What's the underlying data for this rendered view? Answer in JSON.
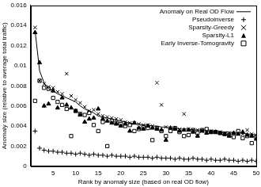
{
  "chart_data": {
    "type": "scatter",
    "x_label": "Rank by anomaly size (based on real OD flow)",
    "y_label": "Anomaly size (relative to average total traffic)",
    "x": [
      1,
      2,
      3,
      4,
      5,
      6,
      7,
      8,
      9,
      10,
      11,
      12,
      13,
      14,
      15,
      16,
      17,
      18,
      19,
      20,
      21,
      22,
      23,
      24,
      25,
      26,
      27,
      28,
      29,
      30,
      31,
      32,
      33,
      34,
      35,
      36,
      37,
      38,
      39,
      40,
      41,
      42,
      43,
      44,
      45,
      46,
      47,
      48,
      49,
      50
    ],
    "series": [
      {
        "name": "Anomaly on Real OD Flow",
        "type": "line",
        "line_style": "solid",
        "color": "#000000",
        "values": [
          0.0135,
          0.0095,
          0.0083,
          0.0077,
          0.0075,
          0.0072,
          0.007,
          0.0068,
          0.0066,
          0.0064,
          0.006,
          0.0057,
          0.0055,
          0.0053,
          0.005,
          0.0049,
          0.0048,
          0.0047,
          0.0046,
          0.0045,
          0.0044,
          0.0043,
          0.0042,
          0.0042,
          0.0041,
          0.0041,
          0.004,
          0.004,
          0.0039,
          0.0039,
          0.0038,
          0.0038,
          0.0037,
          0.0037,
          0.0037,
          0.0036,
          0.0036,
          0.0036,
          0.0035,
          0.0035,
          0.0035,
          0.0034,
          0.0034,
          0.0034,
          0.0033,
          0.0033,
          0.0033,
          0.0032,
          0.0032,
          0.0031
        ]
      },
      {
        "name": "Pseudoinverse",
        "marker": "plus",
        "color": "#000000",
        "values": [
          0.0035,
          0.0018,
          0.0016,
          0.0015,
          0.0015,
          0.0014,
          0.0014,
          0.0013,
          0.0013,
          0.0012,
          0.0013,
          0.0012,
          0.0011,
          0.0012,
          0.0011,
          0.0011,
          0.001,
          0.0011,
          0.001,
          0.001,
          0.001,
          0.0009,
          0.001,
          0.0009,
          0.0009,
          0.0009,
          0.0008,
          0.0009,
          0.0008,
          0.0008,
          0.0008,
          0.0007,
          0.0008,
          0.0007,
          0.0007,
          0.0008,
          0.0007,
          0.0007,
          0.0006,
          0.0007,
          0.0006,
          0.0006,
          0.0007,
          0.0006,
          0.0006,
          0.0005,
          0.0006,
          0.0005,
          0.0006,
          0.0005
        ]
      },
      {
        "name": "Sparsity-Greedy",
        "marker": "x",
        "color": "#000000",
        "values": [
          0.0138,
          0.0085,
          0.0082,
          0.0079,
          0.0078,
          0.0074,
          0.0072,
          0.0092,
          0.007,
          0.0066,
          0.0063,
          0.0059,
          0.0055,
          0.0056,
          0.0052,
          0.005,
          0.0049,
          0.0048,
          0.0047,
          0.0046,
          0.0044,
          0.0043,
          0.0043,
          0.0042,
          0.0041,
          0.0041,
          0.004,
          0.0083,
          0.0061,
          0.0039,
          0.0038,
          0.0037,
          0.0037,
          0.0052,
          0.0037,
          0.0036,
          0.0036,
          0.0035,
          0.0035,
          0.0035,
          0.0034,
          0.0034,
          0.0033,
          0.0033,
          0.0033,
          0.0032,
          0.0032,
          0.0036,
          0.0032,
          0.0031
        ]
      },
      {
        "name": "Sparsity-L1",
        "marker": "triangle",
        "color": "#000000",
        "values": [
          0.0133,
          0.0103,
          0.006,
          0.0062,
          0.0075,
          0.0058,
          0.0068,
          0.0061,
          0.0058,
          0.0055,
          0.0051,
          0.0044,
          0.0047,
          0.0048,
          0.0057,
          0.0047,
          0.0045,
          0.0043,
          0.0042,
          0.004,
          0.0042,
          0.0035,
          0.0043,
          0.0038,
          0.0037,
          0.004,
          0.0038,
          0.0037,
          0.0036,
          0.0026,
          0.0038,
          0.0037,
          0.0035,
          0.0036,
          0.0036,
          0.0034,
          0.003,
          0.0035,
          0.0033,
          0.0034,
          0.0034,
          0.0033,
          0.0032,
          0.003,
          0.0033,
          0.0032,
          0.0034,
          0.0031,
          0.003,
          0.0027
        ]
      },
      {
        "name": "Early Inverse-Tomogravity",
        "marker": "square",
        "color": "#000000",
        "values": [
          0.0065,
          0.0085,
          0.0078,
          0.0077,
          0.0068,
          0.0064,
          0.0061,
          0.0057,
          0.003,
          0.0055,
          0.0052,
          0.0051,
          0.0053,
          0.0041,
          0.0035,
          0.0044,
          0.002,
          0.0045,
          0.0043,
          0.0042,
          0.004,
          0.0041,
          0.0035,
          0.0037,
          0.0039,
          0.0038,
          0.0026,
          0.0038,
          0.0035,
          0.003,
          0.0035,
          0.0038,
          0.0034,
          0.003,
          0.0031,
          0.0036,
          0.0033,
          0.0036,
          0.0037,
          0.0034,
          0.0034,
          0.0033,
          0.0032,
          0.0031,
          0.0029,
          0.0035,
          0.0028,
          0.003,
          0.0023,
          0.0029
        ]
      }
    ],
    "xlim": [
      0,
      50
    ],
    "xticks": [
      5,
      10,
      15,
      20,
      25,
      30,
      35,
      40,
      45,
      50
    ],
    "ylim": [
      0,
      0.016
    ],
    "yticks": [
      0,
      0.002,
      0.004,
      0.006,
      0.008,
      0.01,
      0.012,
      0.014,
      0.016
    ],
    "grid": false,
    "legend": "top-right"
  }
}
